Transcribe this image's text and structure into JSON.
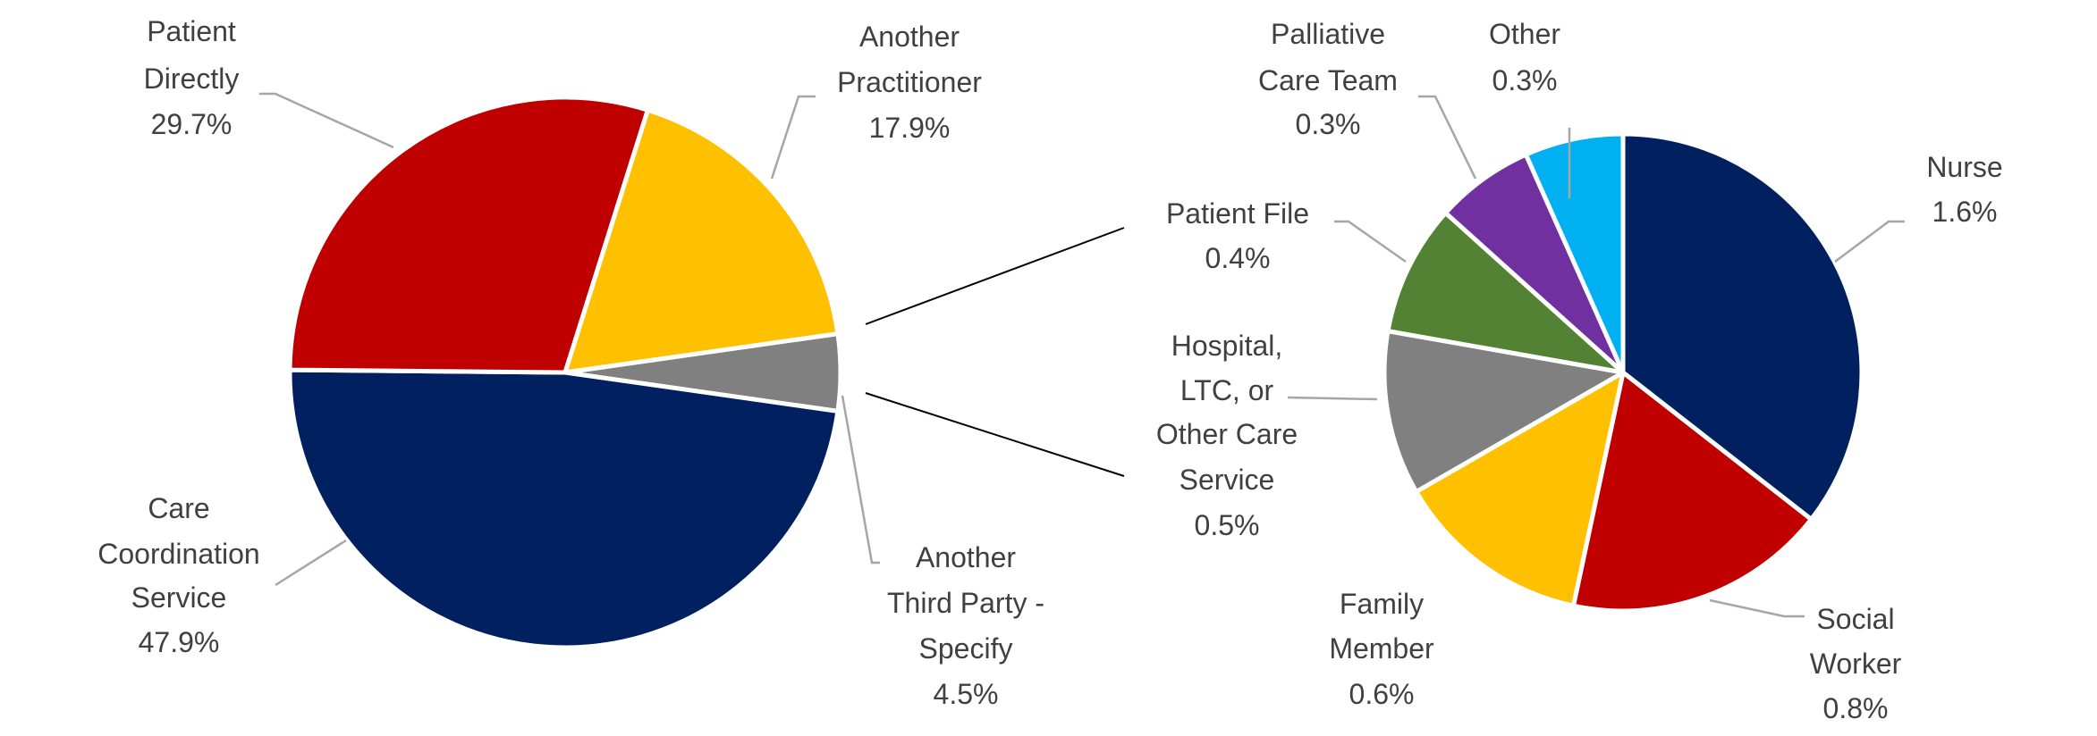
{
  "chart_data": {
    "type": "pie-of-pie",
    "title": "",
    "legend": "none",
    "primary": {
      "slices": [
        {
          "label": [
            "Another",
            "Third Party -",
            "Specify"
          ],
          "value": 4.5,
          "display": "4.5%",
          "color": "#808080"
        },
        {
          "label": [
            "Care",
            "Coordination",
            "Service"
          ],
          "value": 47.9,
          "display": "47.9%",
          "color": "#002060"
        },
        {
          "label": [
            "Patient",
            "Directly"
          ],
          "value": 29.7,
          "display": "29.7%",
          "color": "#C00000"
        },
        {
          "label": [
            "Another",
            "Practitioner"
          ],
          "value": 17.9,
          "display": "17.9%",
          "color": "#FFC000"
        }
      ]
    },
    "secondary": {
      "slices": [
        {
          "label": [
            "Nurse"
          ],
          "value": 1.6,
          "display": "1.6%",
          "color": "#002060"
        },
        {
          "label": [
            "Social",
            "Worker"
          ],
          "value": 0.8,
          "display": "0.8%",
          "color": "#C00000"
        },
        {
          "label": [
            "Family",
            "Member"
          ],
          "value": 0.6,
          "display": "0.6%",
          "color": "#FFC000"
        },
        {
          "label": [
            "Hospital,",
            "LTC, or",
            "Other Care",
            "Service"
          ],
          "value": 0.5,
          "display": "0.5%",
          "color": "#808080"
        },
        {
          "label": [
            "Patient File"
          ],
          "value": 0.4,
          "display": "0.4%",
          "color": "#548235"
        },
        {
          "label": [
            "Palliative",
            "Care Team"
          ],
          "value": 0.3,
          "display": "0.3%",
          "color": "#7030A0"
        },
        {
          "label": [
            "Other"
          ],
          "value": 0.3,
          "display": "0.3%",
          "color": "#00B0F0"
        }
      ]
    }
  }
}
